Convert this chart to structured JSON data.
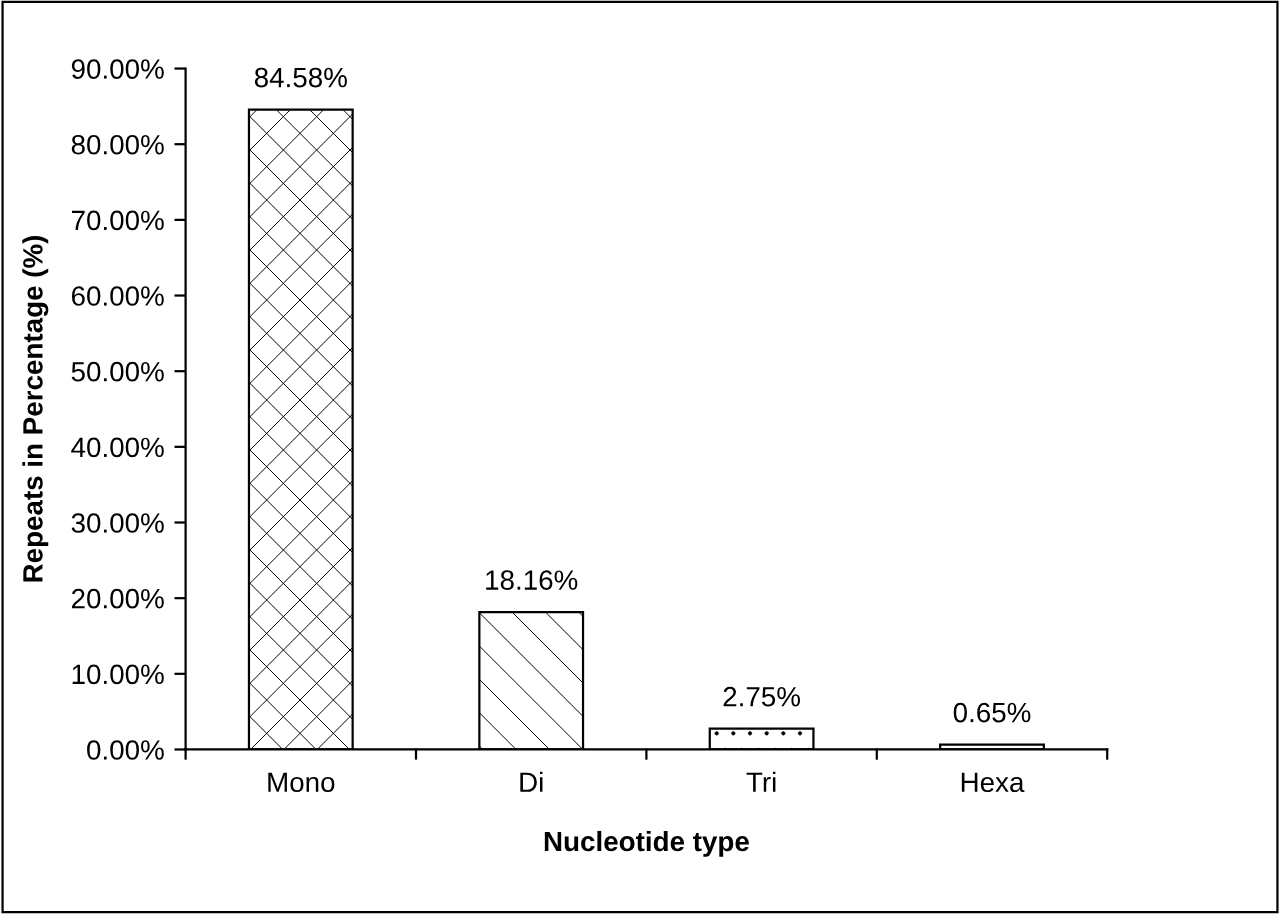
{
  "chart_data": {
    "type": "bar",
    "xlabel": "Nucleotide type",
    "ylabel": "Repeats in Percentage (%)",
    "categories": [
      "Mono",
      "Di",
      "Tri",
      "Hexa"
    ],
    "values": [
      84.58,
      18.16,
      2.75,
      0.65
    ],
    "value_labels": [
      "84.58%",
      "18.16%",
      "2.75%",
      "0.65%"
    ],
    "color": "#ffffff",
    "ylim": [
      0,
      90
    ],
    "yticks": [
      {
        "value": 0,
        "label": "0.00%"
      },
      {
        "value": 10,
        "label": "10.00%"
      },
      {
        "value": 20,
        "label": "20.00%"
      },
      {
        "value": 30,
        "label": "30.00%"
      },
      {
        "value": 40,
        "label": "40.00%"
      },
      {
        "value": 50,
        "label": "50.00%"
      },
      {
        "value": 60,
        "label": "60.00%"
      },
      {
        "value": 70,
        "label": "70.00%"
      },
      {
        "value": 80,
        "label": "80.00%"
      },
      {
        "value": 90,
        "label": "90.00%"
      }
    ],
    "grid": false,
    "legend": false
  }
}
